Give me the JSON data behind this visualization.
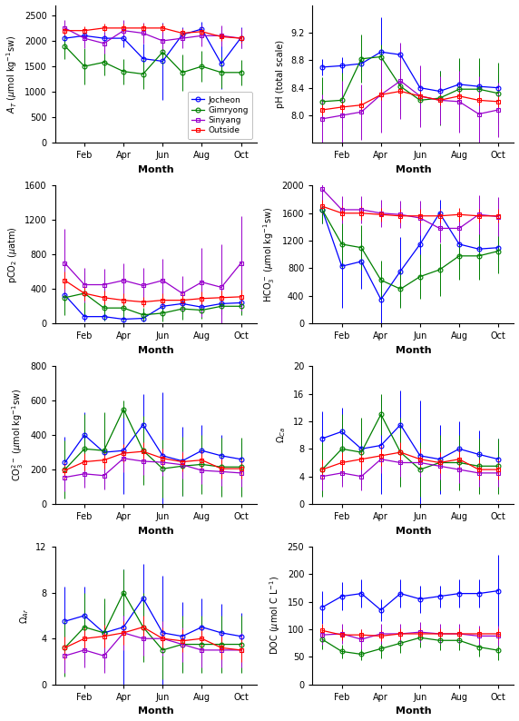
{
  "colors": {
    "Jocheon": "#0000FF",
    "Gimryong": "#008000",
    "Sinyang": "#9900CC",
    "Outside": "#FF0000"
  },
  "markers": {
    "Jocheon": "o",
    "Gimryong": "o",
    "Sinyang": "s",
    "Outside": "s"
  },
  "legend_labels": [
    "Jocheon",
    "Gimryong",
    "Sinyang",
    "Outside"
  ],
  "AT": {
    "ylabel": "$A_T$ ($\\mu$mol kg$^{-1}$sw)",
    "ylim": [
      0,
      2700
    ],
    "yticks": [
      0,
      500,
      1000,
      1500,
      2000,
      2500
    ],
    "Jocheon": {
      "x": [
        1,
        2,
        3,
        4,
        5,
        6,
        7,
        8,
        9,
        10
      ],
      "y": [
        2050,
        2100,
        2050,
        2050,
        1650,
        1600,
        2120,
        2230,
        1550,
        2060
      ],
      "yerr": [
        120,
        150,
        120,
        180,
        300,
        750,
        150,
        150,
        500,
        200
      ]
    },
    "Gimryong": {
      "x": [
        1,
        2,
        3,
        4,
        5,
        6,
        7,
        8,
        9,
        10
      ],
      "y": [
        1900,
        1500,
        1580,
        1400,
        1350,
        1780,
        1380,
        1500,
        1380,
        1380
      ],
      "yerr": [
        250,
        350,
        250,
        250,
        300,
        250,
        350,
        300,
        300,
        250
      ]
    },
    "Sinyang": {
      "x": [
        1,
        2,
        3,
        4,
        5,
        6,
        7,
        8,
        9,
        10
      ],
      "y": [
        2250,
        2050,
        1950,
        2200,
        2150,
        2000,
        2050,
        2100,
        2100,
        2050
      ],
      "yerr": [
        150,
        200,
        200,
        200,
        200,
        200,
        200,
        200,
        200,
        200
      ]
    },
    "Outside": {
      "x": [
        1,
        2,
        3,
        4,
        5,
        6,
        7,
        8,
        9,
        10
      ],
      "y": [
        2200,
        2200,
        2250,
        2250,
        2250,
        2250,
        2150,
        2180,
        2080,
        2050
      ],
      "yerr": [
        80,
        80,
        80,
        80,
        80,
        80,
        80,
        80,
        80,
        80
      ]
    }
  },
  "pH": {
    "ylabel": "pH (total scale)",
    "ylim": [
      7.6,
      9.6
    ],
    "yticks": [
      8.0,
      8.4,
      8.8,
      9.2
    ],
    "Jocheon": {
      "x": [
        1,
        2,
        3,
        4,
        5,
        6,
        7,
        8,
        9,
        10
      ],
      "y": [
        8.7,
        8.72,
        8.75,
        8.92,
        8.88,
        8.4,
        8.35,
        8.45,
        8.42,
        8.4
      ],
      "yerr": [
        0.12,
        0.12,
        0.12,
        0.5,
        0.15,
        0.2,
        0.3,
        0.35,
        0.3,
        0.2
      ]
    },
    "Gimryong": {
      "x": [
        1,
        2,
        3,
        4,
        5,
        6,
        7,
        8,
        9,
        10
      ],
      "y": [
        8.2,
        8.22,
        8.82,
        8.85,
        8.42,
        8.22,
        8.25,
        8.38,
        8.38,
        8.32
      ],
      "yerr": [
        0.35,
        0.4,
        0.35,
        0.18,
        0.4,
        0.3,
        0.4,
        0.45,
        0.45,
        0.45
      ]
    },
    "Sinyang": {
      "x": [
        1,
        2,
        3,
        4,
        5,
        6,
        7,
        8,
        9,
        10
      ],
      "y": [
        7.95,
        8.0,
        8.05,
        8.3,
        8.5,
        8.28,
        8.22,
        8.2,
        8.02,
        8.08
      ],
      "yerr": [
        0.35,
        0.5,
        0.4,
        0.55,
        0.55,
        0.45,
        0.35,
        0.45,
        0.55,
        0.4
      ]
    },
    "Outside": {
      "x": [
        1,
        2,
        3,
        4,
        5,
        6,
        7,
        8,
        9,
        10
      ],
      "y": [
        8.08,
        8.12,
        8.15,
        8.3,
        8.35,
        8.28,
        8.22,
        8.28,
        8.22,
        8.2
      ],
      "yerr": [
        0.08,
        0.08,
        0.08,
        0.08,
        0.08,
        0.08,
        0.08,
        0.08,
        0.08,
        0.08
      ]
    }
  },
  "pCO2": {
    "ylabel": "pCO$_2$ ($\\mu$atm)",
    "ylim": [
      0,
      1600
    ],
    "yticks": [
      0,
      400,
      800,
      1200,
      1600
    ],
    "Jocheon": {
      "x": [
        1,
        2,
        3,
        4,
        5,
        6,
        7,
        8,
        9,
        10
      ],
      "y": [
        330,
        80,
        80,
        50,
        60,
        200,
        230,
        190,
        230,
        240
      ],
      "yerr": [
        100,
        60,
        50,
        40,
        40,
        100,
        100,
        80,
        80,
        80
      ]
    },
    "Gimryong": {
      "x": [
        1,
        2,
        3,
        4,
        5,
        6,
        7,
        8,
        9,
        10
      ],
      "y": [
        300,
        350,
        180,
        180,
        100,
        120,
        170,
        155,
        200,
        200
      ],
      "yerr": [
        200,
        250,
        150,
        150,
        80,
        100,
        120,
        100,
        100,
        100
      ]
    },
    "Sinyang": {
      "x": [
        1,
        2,
        3,
        4,
        5,
        6,
        7,
        8,
        9,
        10
      ],
      "y": [
        700,
        450,
        450,
        500,
        440,
        500,
        350,
        480,
        420,
        700
      ],
      "yerr": [
        400,
        200,
        180,
        200,
        200,
        250,
        200,
        400,
        500,
        550
      ]
    },
    "Outside": {
      "x": [
        1,
        2,
        3,
        4,
        5,
        6,
        7,
        8,
        9,
        10
      ],
      "y": [
        500,
        350,
        300,
        270,
        250,
        270,
        270,
        290,
        300,
        310
      ],
      "yerr": [
        100,
        80,
        80,
        80,
        60,
        80,
        80,
        80,
        80,
        80
      ]
    }
  },
  "HCO3": {
    "ylabel": "HCO$_3^-$ ($\\mu$mol kg$^{-1}$sw)",
    "ylim": [
      0,
      2000
    ],
    "yticks": [
      0,
      400,
      800,
      1200,
      1600,
      2000
    ],
    "Jocheon": {
      "x": [
        1,
        2,
        3,
        4,
        5,
        6,
        7,
        8,
        9,
        10
      ],
      "y": [
        1650,
        830,
        900,
        350,
        760,
        1150,
        1600,
        1150,
        1080,
        1100
      ],
      "yerr": [
        200,
        600,
        400,
        350,
        500,
        350,
        200,
        300,
        300,
        200
      ]
    },
    "Gimryong": {
      "x": [
        1,
        2,
        3,
        4,
        5,
        6,
        7,
        8,
        9,
        10
      ],
      "y": [
        1650,
        1150,
        1100,
        630,
        500,
        680,
        780,
        980,
        980,
        1050
      ],
      "yerr": [
        200,
        350,
        320,
        280,
        270,
        320,
        380,
        350,
        350,
        320
      ]
    },
    "Sinyang": {
      "x": [
        1,
        2,
        3,
        4,
        5,
        6,
        7,
        8,
        9,
        10
      ],
      "y": [
        1950,
        1650,
        1650,
        1600,
        1580,
        1530,
        1380,
        1380,
        1580,
        1550
      ],
      "yerr": [
        200,
        200,
        200,
        200,
        200,
        250,
        200,
        200,
        280,
        280
      ]
    },
    "Outside": {
      "x": [
        1,
        2,
        3,
        4,
        5,
        6,
        7,
        8,
        9,
        10
      ],
      "y": [
        1700,
        1600,
        1600,
        1580,
        1560,
        1560,
        1560,
        1580,
        1560,
        1560
      ],
      "yerr": [
        100,
        100,
        100,
        100,
        100,
        100,
        100,
        100,
        100,
        100
      ]
    }
  },
  "CO3": {
    "ylabel": "CO$_3^{2-}$ ($\\mu$mol kg$^{-1}$sw)",
    "ylim": [
      0,
      800
    ],
    "yticks": [
      0,
      200,
      400,
      600,
      800
    ],
    "Jocheon": {
      "x": [
        1,
        2,
        3,
        4,
        5,
        6,
        7,
        8,
        9,
        10
      ],
      "y": [
        240,
        400,
        300,
        310,
        460,
        280,
        250,
        310,
        280,
        260
      ],
      "yerr": [
        150,
        130,
        130,
        250,
        180,
        370,
        200,
        150,
        120,
        100
      ]
    },
    "Gimryong": {
      "x": [
        1,
        2,
        3,
        4,
        5,
        6,
        7,
        8,
        9,
        10
      ],
      "y": [
        200,
        320,
        310,
        550,
        310,
        205,
        220,
        230,
        215,
        215
      ],
      "yerr": [
        170,
        200,
        220,
        50,
        200,
        170,
        170,
        170,
        170,
        170
      ]
    },
    "Sinyang": {
      "x": [
        1,
        2,
        3,
        4,
        5,
        6,
        7,
        8,
        9,
        10
      ],
      "y": [
        155,
        175,
        165,
        265,
        248,
        242,
        228,
        195,
        188,
        180
      ],
      "yerr": [
        80,
        80,
        80,
        80,
        80,
        80,
        80,
        80,
        80,
        80
      ]
    },
    "Outside": {
      "x": [
        1,
        2,
        3,
        4,
        5,
        6,
        7,
        8,
        9,
        10
      ],
      "y": [
        195,
        245,
        255,
        295,
        305,
        265,
        245,
        255,
        205,
        205
      ],
      "yerr": [
        55,
        50,
        50,
        55,
        55,
        55,
        55,
        55,
        55,
        55
      ]
    }
  },
  "Omega_ca": {
    "ylabel": "$\\Omega_{Ca}$",
    "ylim": [
      0,
      20
    ],
    "yticks": [
      0,
      4,
      8,
      12,
      16,
      20
    ],
    "Jocheon": {
      "x": [
        1,
        2,
        3,
        4,
        5,
        6,
        7,
        8,
        9,
        10
      ],
      "y": [
        9.5,
        10.5,
        8.0,
        8.5,
        11.5,
        7.0,
        6.5,
        8.0,
        7.2,
        6.5
      ],
      "yerr": [
        4,
        3.5,
        3,
        7,
        5,
        8,
        5,
        4,
        3.5,
        3
      ]
    },
    "Gimryong": {
      "x": [
        1,
        2,
        3,
        4,
        5,
        6,
        7,
        8,
        9,
        10
      ],
      "y": [
        5.0,
        8.0,
        7.5,
        13.0,
        7.5,
        5.0,
        6.0,
        6.0,
        5.5,
        5.5
      ],
      "yerr": [
        4,
        5,
        5,
        3,
        5,
        4,
        4,
        4,
        4,
        4
      ]
    },
    "Sinyang": {
      "x": [
        1,
        2,
        3,
        4,
        5,
        6,
        7,
        8,
        9,
        10
      ],
      "y": [
        4.0,
        4.5,
        4.0,
        6.5,
        6.0,
        6.0,
        5.5,
        5.0,
        4.5,
        4.5
      ],
      "yerr": [
        2,
        2,
        2,
        2,
        2,
        2,
        2,
        2,
        2,
        2
      ]
    },
    "Outside": {
      "x": [
        1,
        2,
        3,
        4,
        5,
        6,
        7,
        8,
        9,
        10
      ],
      "y": [
        5.0,
        6.0,
        6.5,
        7.0,
        7.5,
        6.5,
        6.0,
        6.5,
        5.0,
        5.0
      ],
      "yerr": [
        1.5,
        1.5,
        1.5,
        1.5,
        1.5,
        1.5,
        1.5,
        1.5,
        1.5,
        1.5
      ]
    }
  },
  "Omega_ar": {
    "ylabel": "$\\Omega_{Ar}$",
    "ylim": [
      0,
      12
    ],
    "yticks": [
      0,
      4,
      8,
      12
    ],
    "Jocheon": {
      "x": [
        1,
        2,
        3,
        4,
        5,
        6,
        7,
        8,
        9,
        10
      ],
      "y": [
        5.5,
        6.0,
        4.5,
        5.0,
        7.5,
        4.5,
        4.2,
        5.0,
        4.5,
        4.2
      ],
      "yerr": [
        3.0,
        2.5,
        2.5,
        5.0,
        3.0,
        5.0,
        3.0,
        2.5,
        2.5,
        2.0
      ]
    },
    "Gimryong": {
      "x": [
        1,
        2,
        3,
        4,
        5,
        6,
        7,
        8,
        9,
        10
      ],
      "y": [
        3.2,
        5.0,
        4.5,
        8.0,
        5.0,
        3.0,
        3.5,
        3.5,
        3.5,
        3.5
      ],
      "yerr": [
        2.5,
        3.0,
        3.0,
        2.0,
        3.0,
        2.5,
        2.5,
        2.5,
        2.5,
        2.5
      ]
    },
    "Sinyang": {
      "x": [
        1,
        2,
        3,
        4,
        5,
        6,
        7,
        8,
        9,
        10
      ],
      "y": [
        2.5,
        3.0,
        2.5,
        4.5,
        4.0,
        4.0,
        3.5,
        3.0,
        3.0,
        3.0
      ],
      "yerr": [
        1.5,
        1.5,
        1.5,
        1.5,
        1.5,
        1.5,
        1.5,
        1.5,
        1.5,
        1.5
      ]
    },
    "Outside": {
      "x": [
        1,
        2,
        3,
        4,
        5,
        6,
        7,
        8,
        9,
        10
      ],
      "y": [
        3.2,
        4.0,
        4.2,
        4.5,
        5.0,
        4.0,
        3.8,
        4.0,
        3.2,
        3.0
      ],
      "yerr": [
        1.0,
        1.0,
        1.0,
        1.0,
        1.0,
        1.0,
        1.0,
        1.0,
        1.0,
        1.0
      ]
    }
  },
  "DOC": {
    "ylabel": "DOC ($\\mu$mol C L$^{-1}$)",
    "ylim": [
      0,
      250
    ],
    "yticks": [
      0,
      50,
      100,
      150,
      200,
      250
    ],
    "Jocheon": {
      "x": [
        1,
        2,
        3,
        4,
        5,
        6,
        7,
        8,
        9,
        10
      ],
      "y": [
        140,
        160,
        165,
        135,
        165,
        155,
        160,
        165,
        165,
        170
      ],
      "yerr": [
        30,
        25,
        25,
        20,
        25,
        25,
        20,
        25,
        25,
        65
      ]
    },
    "Gimryong": {
      "x": [
        1,
        2,
        3,
        4,
        5,
        6,
        7,
        8,
        9,
        10
      ],
      "y": [
        82,
        60,
        55,
        65,
        75,
        85,
        80,
        80,
        68,
        62
      ],
      "yerr": [
        18,
        12,
        10,
        18,
        18,
        18,
        18,
        18,
        18,
        18
      ]
    },
    "Sinyang": {
      "x": [
        1,
        2,
        3,
        4,
        5,
        6,
        7,
        8,
        9,
        10
      ],
      "y": [
        90,
        92,
        82,
        92,
        92,
        95,
        92,
        92,
        88,
        88
      ],
      "yerr": [
        18,
        18,
        18,
        18,
        18,
        18,
        18,
        18,
        18,
        18
      ]
    },
    "Outside": {
      "x": [
        1,
        2,
        3,
        4,
        5,
        6,
        7,
        8,
        9,
        10
      ],
      "y": [
        98,
        90,
        90,
        88,
        92,
        92,
        92,
        92,
        92,
        92
      ],
      "yerr": [
        12,
        10,
        10,
        10,
        10,
        10,
        10,
        10,
        10,
        10
      ]
    }
  },
  "month_tick_positions": [
    2,
    4,
    6,
    8,
    10
  ],
  "month_labels": [
    "Feb",
    "Apr",
    "Jun",
    "Aug",
    "Oct"
  ]
}
